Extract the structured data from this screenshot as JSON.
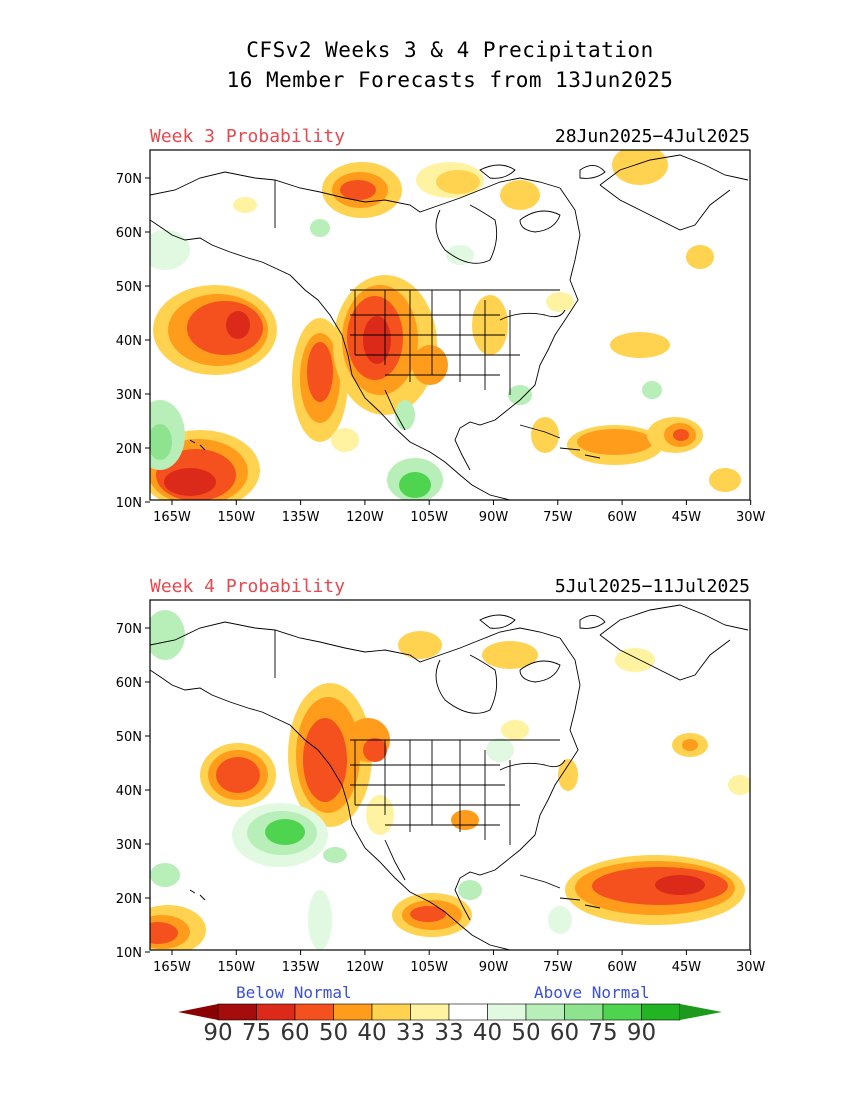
{
  "header": {
    "line1": "CFSv2 Weeks 3 & 4 Precipitation",
    "line2": "16 Member Forecasts from 13Jun2025"
  },
  "panels": [
    {
      "label": "Week 3 Probability",
      "dates": "28Jun2025−4Jul2025"
    },
    {
      "label": "Week 4 Probability",
      "dates": "5Jul2025−11Jul2025"
    }
  ],
  "axes": {
    "lon_labels": [
      "165W",
      "150W",
      "135W",
      "120W",
      "105W",
      "90W",
      "75W",
      "60W",
      "45W",
      "30W"
    ],
    "lat_labels": [
      "70N",
      "60N",
      "50N",
      "40N",
      "30N",
      "20N",
      "10N"
    ]
  },
  "legend": {
    "below_label": "Below Normal",
    "above_label": "Above Normal",
    "values": [
      "90",
      "75",
      "60",
      "50",
      "40",
      "33",
      "33",
      "40",
      "50",
      "60",
      "75",
      "90"
    ],
    "colors": [
      "#a50d0d",
      "#dc2a1a",
      "#f5511e",
      "#ff9c1c",
      "#ffd24f",
      "#fff2a0",
      "#ffffff",
      "#e0f9e0",
      "#b8efb8",
      "#8ee38e",
      "#4fd44f",
      "#22b422"
    ],
    "left_arrow_color": "#8b0000",
    "right_arrow_color": "#1d9a1d"
  }
}
